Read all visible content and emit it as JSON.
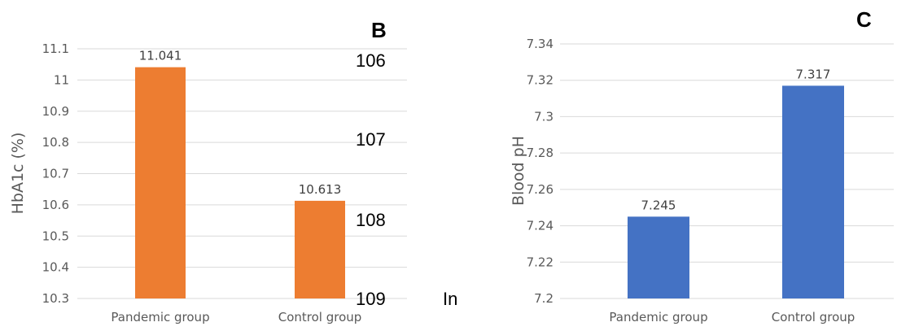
{
  "chart_data": [
    {
      "type": "bar",
      "panel": "B",
      "categories": [
        "Pandemic group",
        "Control group"
      ],
      "values": [
        11.041,
        10.613
      ],
      "data_labels": [
        "11.041",
        "10.613"
      ],
      "ylabel": "HbA1c (%)",
      "ylim": [
        10.3,
        11.1
      ],
      "yticks": [
        "10.3",
        "10.4",
        "10.5",
        "10.6",
        "10.7",
        "10.8",
        "10.9",
        "11",
        "11.1"
      ],
      "grid": true,
      "color": "#ED7D31"
    },
    {
      "type": "bar",
      "panel": "C",
      "categories": [
        "Pandemic group",
        "Control group"
      ],
      "values": [
        7.245,
        7.317
      ],
      "data_labels": [
        "7.245",
        "7.317"
      ],
      "ylabel": "Blood pH",
      "ylim": [
        7.2,
        7.34
      ],
      "yticks": [
        "7.2",
        "7.22",
        "7.24",
        "7.26",
        "7.28",
        "7.3",
        "7.32",
        "7.34"
      ],
      "grid": true,
      "color": "#4472C4"
    }
  ],
  "overlay_text": {
    "line_numbers": [
      "106",
      "107",
      "108",
      "109"
    ],
    "fragment": "In"
  }
}
